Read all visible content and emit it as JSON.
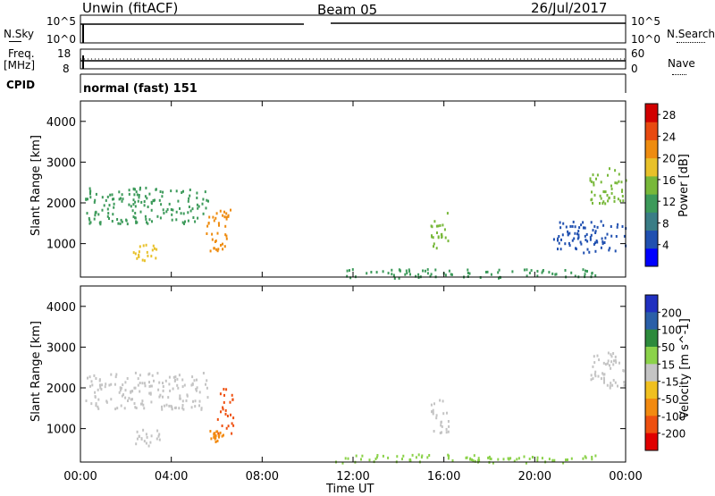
{
  "header": {
    "title": "Unwin (fitACF)",
    "beam": "Beam 05",
    "date": "26/Jul/2017"
  },
  "strips": {
    "nsky_label": "N.Sky",
    "nsky_ticks": [
      "10^5",
      "10^0"
    ],
    "nsearch_label": "N.Search",
    "nsearch_ticks": [
      "10^5",
      "10^0"
    ],
    "freq_label_1": "Freq.",
    "freq_label_2": "[MHz]",
    "freq_ticks": [
      "18",
      "8"
    ],
    "nave_label": "Nave",
    "nave_ticks": [
      "60",
      "0"
    ],
    "cpid_label": "CPID",
    "cpid_value": "normal (fast) 151"
  },
  "chart_data": [
    {
      "type": "heatmap",
      "title": "",
      "xlabel": "Time UT",
      "ylabel": "Slant Range [km]",
      "xlim": [
        0,
        24
      ],
      "ylim": [
        180,
        4500
      ],
      "x_ticks": [
        "00:00",
        "04:00",
        "08:00",
        "12:00",
        "16:00",
        "20:00",
        "00:00"
      ],
      "y_ticks": [
        1000,
        2000,
        3000,
        4000
      ],
      "colorbar": {
        "label": "Power [dB]",
        "ticks": [
          28,
          24,
          20,
          16,
          12,
          8,
          4
        ],
        "range": [
          0,
          30
        ],
        "colors": [
          "#0000ff",
          "#2050b0",
          "#3a7d86",
          "#3c9a5a",
          "#78b83a",
          "#e8c12a",
          "#ee8c10",
          "#e84a10",
          "#d10000"
        ]
      },
      "regions": [
        {
          "t0": 0.2,
          "t1": 5.6,
          "r0": 1500,
          "r1": 2400,
          "value": 10
        },
        {
          "t0": 2.3,
          "t1": 3.5,
          "r0": 600,
          "r1": 1000,
          "value": 18
        },
        {
          "t0": 5.5,
          "t1": 6.6,
          "r0": 800,
          "r1": 1900,
          "value": 22
        },
        {
          "t0": 15.4,
          "t1": 16.2,
          "r0": 900,
          "r1": 1800,
          "value": 14
        },
        {
          "t0": 11.2,
          "t1": 22.8,
          "r0": 180,
          "r1": 400,
          "value": 12
        },
        {
          "t0": 20.8,
          "t1": 24,
          "r0": 800,
          "r1": 1600,
          "value": 6
        },
        {
          "t0": 22.4,
          "t1": 24,
          "r0": 2000,
          "r1": 2900,
          "value": 16
        }
      ]
    },
    {
      "type": "heatmap",
      "title": "",
      "xlabel": "Time UT",
      "ylabel": "Slant Range [km]",
      "xlim": [
        0,
        24
      ],
      "ylim": [
        180,
        4500
      ],
      "x_ticks": [
        "00:00",
        "04:00",
        "08:00",
        "12:00",
        "16:00",
        "20:00",
        "00:00"
      ],
      "y_ticks": [
        1000,
        2000,
        3000,
        4000
      ],
      "colorbar": {
        "label": "Velocity [m s^-1]",
        "ticks": [
          "200",
          "100",
          "50",
          "15",
          "-15",
          "-50",
          "-100",
          "-200"
        ],
        "colors": [
          "#2030c0",
          "#2a5fa8",
          "#2d8a3c",
          "#8bd24a",
          "#c4c4c4",
          "#f0c020",
          "#f28a10",
          "#ee5010",
          "#e00000"
        ]
      },
      "regions": [
        {
          "t0": 0.2,
          "t1": 5.6,
          "r0": 1500,
          "r1": 2400,
          "value": 0
        },
        {
          "t0": 2.3,
          "t1": 3.5,
          "r0": 600,
          "r1": 1000,
          "value": 0
        },
        {
          "t0": 6.0,
          "t1": 6.7,
          "r0": 900,
          "r1": 2000,
          "value": -180
        },
        {
          "t0": 5.5,
          "t1": 6.3,
          "r0": 700,
          "r1": 1000,
          "value": -60
        },
        {
          "t0": 15.4,
          "t1": 16.2,
          "r0": 900,
          "r1": 1800,
          "value": 0
        },
        {
          "t0": 11.2,
          "t1": 22.8,
          "r0": 180,
          "r1": 400,
          "value": 40
        },
        {
          "t0": 22.4,
          "t1": 24,
          "r0": 2000,
          "r1": 2900,
          "value": 0
        }
      ]
    }
  ]
}
